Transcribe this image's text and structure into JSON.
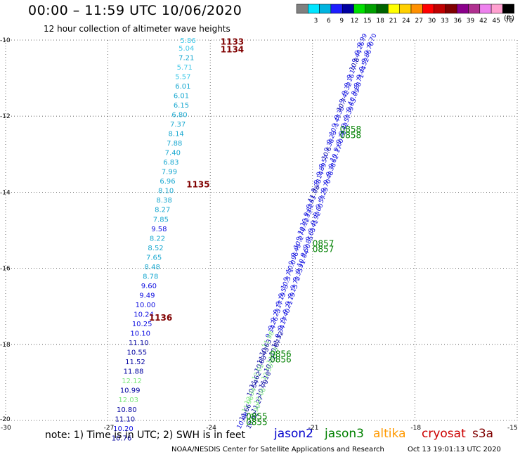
{
  "header": {
    "title": "00:00 – 11:59 UTC 10/06/2020",
    "subtitle": "12 hour collection of altimeter wave heights"
  },
  "colorscale": {
    "colors": [
      "#808080",
      "#00e5ff",
      "#00b4e0",
      "#1e1eff",
      "#0000a0",
      "#00e000",
      "#00a000",
      "#006400",
      "#ffff00",
      "#ffd000",
      "#ff9000",
      "#ff0000",
      "#c00000",
      "#800000",
      "#8b008b",
      "#b03090",
      "#ee82ee",
      "#ffa0d0",
      "#000000"
    ],
    "labels": [
      "3",
      "6",
      "9",
      "12",
      "15",
      "18",
      "21",
      "24",
      "27",
      "30",
      "33",
      "36",
      "39",
      "42",
      "45",
      "70"
    ],
    "units": "(ft)"
  },
  "footer": {
    "note": "note:  1) Time is in UTC;  2) SWH is in feet",
    "credit": "NOAA/NESDIS Center for Satellite Applications and Research",
    "timestamp": "Oct 13 19:01:13 UTC 2020"
  },
  "satellites": [
    {
      "name": "jason2",
      "color": "#0000cc"
    },
    {
      "name": "jason3",
      "color": "#008000"
    },
    {
      "name": "altika",
      "color": "#ff9900"
    },
    {
      "name": "cryosat",
      "color": "#cc0000"
    },
    {
      "name": "s3a",
      "color": "#800000"
    }
  ],
  "chart_data": {
    "type": "scatter",
    "xlim": [
      -30,
      -15
    ],
    "ylim": [
      -20,
      -10
    ],
    "x_ticks": [
      "-30",
      "-27",
      "-24",
      "-21",
      "-18",
      "-15"
    ],
    "y_ticks": [
      "-10",
      "-12",
      "-14",
      "-16",
      "-18",
      "-20"
    ],
    "grid": true,
    "pass_left": {
      "satellite": "s3a",
      "times": [
        {
          "label": "1133",
          "lon": -23.7,
          "lat": -10.05
        },
        {
          "label": "1134",
          "lon": -23.7,
          "lat": -10.25
        },
        {
          "label": "1135",
          "lon": -24.7,
          "lat": -13.8
        },
        {
          "label": "1136",
          "lon": -25.8,
          "lat": -17.3
        }
      ],
      "points": [
        {
          "v": "5.86",
          "lon": -24.65,
          "lat": -10.0
        },
        {
          "v": "5.04",
          "lon": -24.7,
          "lat": -10.2
        },
        {
          "v": "7.21",
          "lon": -24.7,
          "lat": -10.45
        },
        {
          "v": "5.71",
          "lon": -24.75,
          "lat": -10.7
        },
        {
          "v": "5.57",
          "lon": -24.8,
          "lat": -10.95
        },
        {
          "v": "6.01",
          "lon": -24.8,
          "lat": -11.2
        },
        {
          "v": "6.01",
          "lon": -24.85,
          "lat": -11.45
        },
        {
          "v": "6.15",
          "lon": -24.85,
          "lat": -11.7
        },
        {
          "v": "6.80",
          "lon": -24.9,
          "lat": -11.95
        },
        {
          "v": "7.37",
          "lon": -24.95,
          "lat": -12.2
        },
        {
          "v": "8.14",
          "lon": -25.0,
          "lat": -12.45
        },
        {
          "v": "7.88",
          "lon": -25.05,
          "lat": -12.7
        },
        {
          "v": "7.40",
          "lon": -25.1,
          "lat": -12.95
        },
        {
          "v": "6.83",
          "lon": -25.15,
          "lat": -13.2
        },
        {
          "v": "7.99",
          "lon": -25.2,
          "lat": -13.45
        },
        {
          "v": "6.96",
          "lon": -25.25,
          "lat": -13.7
        },
        {
          "v": "8.10",
          "lon": -25.3,
          "lat": -13.95
        },
        {
          "v": "8.38",
          "lon": -25.35,
          "lat": -14.2
        },
        {
          "v": "8.27",
          "lon": -25.4,
          "lat": -14.45
        },
        {
          "v": "7.85",
          "lon": -25.45,
          "lat": -14.7
        },
        {
          "v": "9.58",
          "lon": -25.5,
          "lat": -14.95
        },
        {
          "v": "8.22",
          "lon": -25.55,
          "lat": -15.2
        },
        {
          "v": "8.52",
          "lon": -25.6,
          "lat": -15.45
        },
        {
          "v": "7.65",
          "lon": -25.65,
          "lat": -15.7
        },
        {
          "v": "8.48",
          "lon": -25.7,
          "lat": -15.95
        },
        {
          "v": "8.78",
          "lon": -25.75,
          "lat": -16.2
        },
        {
          "v": "9.60",
          "lon": -25.8,
          "lat": -16.45
        },
        {
          "v": "9.49",
          "lon": -25.85,
          "lat": -16.7
        },
        {
          "v": "10.00",
          "lon": -25.9,
          "lat": -16.95
        },
        {
          "v": "10.24",
          "lon": -25.95,
          "lat": -17.2
        },
        {
          "v": "10.25",
          "lon": -26.0,
          "lat": -17.45
        },
        {
          "v": "10.10",
          "lon": -26.05,
          "lat": -17.7
        },
        {
          "v": "11.10",
          "lon": -26.1,
          "lat": -17.95
        },
        {
          "v": "10.55",
          "lon": -26.15,
          "lat": -18.2
        },
        {
          "v": "11.52",
          "lon": -26.2,
          "lat": -18.45
        },
        {
          "v": "11.88",
          "lon": -26.25,
          "lat": -18.7
        },
        {
          "v": "12.12",
          "lon": -26.3,
          "lat": -18.95
        },
        {
          "v": "10.99",
          "lon": -26.35,
          "lat": -19.2
        },
        {
          "v": "12.03",
          "lon": -26.4,
          "lat": -19.45
        },
        {
          "v": "10.80",
          "lon": -26.45,
          "lat": -19.7
        },
        {
          "v": "11.10",
          "lon": -26.5,
          "lat": -19.95
        },
        {
          "v": "10.20",
          "lon": -26.55,
          "lat": -20.2
        },
        {
          "v": "10.76",
          "lon": -26.6,
          "lat": -20.45
        }
      ]
    },
    "pass_right": {
      "satellite": "jason3",
      "times": [
        {
          "label": "0858",
          "lon": -20.2,
          "lat": -12.35
        },
        {
          "label": "0858",
          "lon": -20.2,
          "lat": -12.5
        },
        {
          "label": "0857",
          "lon": -21.0,
          "lat": -15.35
        },
        {
          "label": "0857",
          "lon": -21.0,
          "lat": -15.5
        },
        {
          "label": "0856",
          "lon": -22.25,
          "lat": -18.25
        },
        {
          "label": "0856",
          "lon": -22.25,
          "lat": -18.4
        },
        {
          "label": "0855",
          "lon": -22.95,
          "lat": -19.9
        },
        {
          "label": "0855",
          "lon": -22.95,
          "lat": -20.05
        }
      ],
      "points_a": [
        "9.99",
        "9.26",
        "9.44",
        "10.8",
        "9.17",
        "9.16",
        "9.32",
        "9.42",
        "10.7",
        "9.35",
        "9.47",
        "10.1",
        "9.23",
        "9.38",
        "10.6",
        "9.57",
        "9.89",
        "9.14",
        "9.28",
        "11.08",
        "9.61",
        "9.82",
        "10.33",
        "10.12",
        "9.74",
        "10.2",
        "9.45",
        "9.96",
        "10.0",
        "9.71",
        "10.3",
        "9.53",
        "9.19",
        "9.17",
        "9.23",
        "9.26",
        "9.14",
        "11.98",
        "10.63",
        "11.43",
        "10.83",
        "12.01",
        "11.62",
        "10.54",
        "12.34",
        "11.96",
        "11.66",
        "10.48"
      ],
      "points_b": [
        "9.70",
        "9.70",
        "9.86",
        "9.52",
        "9.44",
        "9.71",
        "9.88",
        "10.09",
        "9.65",
        "9.39",
        "9.57",
        "9.42",
        "9.78",
        "9.60",
        "10.17",
        "9.62",
        "9.38",
        "9.48",
        "9.70",
        "9.29",
        "9.57",
        "9.60",
        "9.92",
        "9.41",
        "9.63",
        "9.85",
        "9.50",
        "10.04",
        "9.91",
        "9.33",
        "9.72",
        "9.13",
        "9.19",
        "9.21",
        "9.40",
        "9.17",
        "9.34",
        "11.52",
        "10.87",
        "11.93",
        "10.71",
        "12.55",
        "11.18",
        "10.79",
        "12.06",
        "11.27",
        "11.90",
        "10.92"
      ]
    }
  }
}
